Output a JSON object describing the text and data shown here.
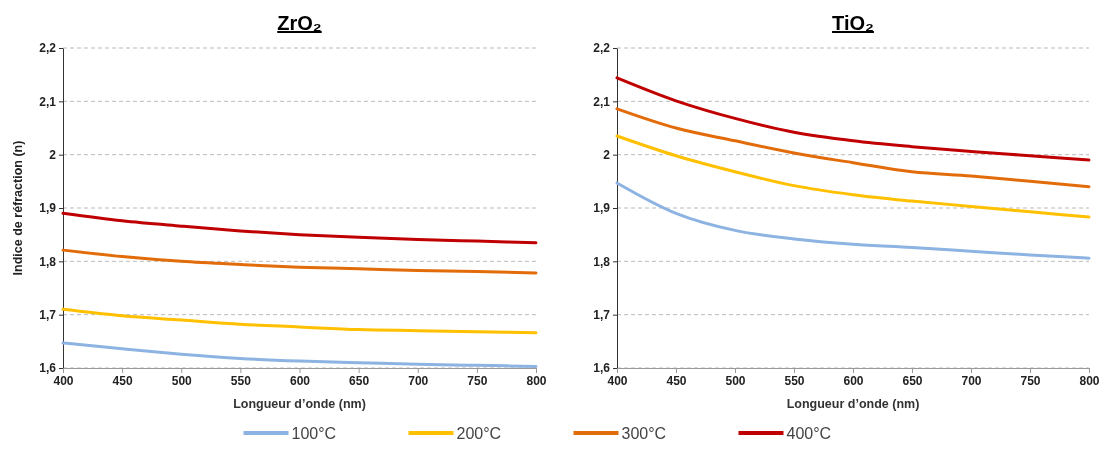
{
  "chart_data": [
    {
      "type": "line",
      "title": "ZrO₂",
      "xlabel": "Longueur d’onde (nm)",
      "ylabel": "Indice de réfraction (n)",
      "x": [
        400,
        450,
        500,
        550,
        600,
        650,
        700,
        750,
        800
      ],
      "xlim": [
        400,
        800
      ],
      "xticks": [
        400,
        450,
        500,
        550,
        600,
        650,
        700,
        750,
        800
      ],
      "ylim": [
        1.6,
        2.2
      ],
      "yticks": [
        {
          "value": 1.6,
          "label": "1,6"
        },
        {
          "value": 1.7,
          "label": "1,7"
        },
        {
          "value": 1.8,
          "label": "1,8"
        },
        {
          "value": 1.9,
          "label": "1,9"
        },
        2,
        {
          "value": 2.1,
          "label": "2,1"
        },
        {
          "value": 2.2,
          "label": "2,2"
        }
      ],
      "grid": "y",
      "legend": "bottom",
      "line_style": "solid",
      "marker": "none",
      "series": [
        {
          "name": "100°C",
          "color": "#8db3e2",
          "values": [
            1.647,
            1.636,
            1.626,
            1.618,
            1.613,
            1.61,
            1.607,
            1.605,
            1.603
          ]
        },
        {
          "name": "200°C",
          "color": "#ffc000",
          "values": [
            1.71,
            1.698,
            1.69,
            1.682,
            1.677,
            1.672,
            1.67,
            1.668,
            1.666
          ]
        },
        {
          "name": "300°C",
          "color": "#e36c0a",
          "values": [
            1.821,
            1.809,
            1.8,
            1.794,
            1.789,
            1.786,
            1.783,
            1.781,
            1.778
          ]
        },
        {
          "name": "400°C",
          "color": "#c00000",
          "values": [
            1.89,
            1.876,
            1.866,
            1.857,
            1.85,
            1.845,
            1.841,
            1.838,
            1.835
          ]
        }
      ]
    },
    {
      "type": "line",
      "title": "TiO₂",
      "xlabel": "Longueur d’onde (nm)",
      "x": [
        400,
        450,
        500,
        550,
        600,
        650,
        700,
        750,
        800
      ],
      "xlim": [
        400,
        800
      ],
      "xticks": [
        400,
        450,
        500,
        550,
        600,
        650,
        700,
        750,
        800
      ],
      "ylim": [
        1.6,
        2.2
      ],
      "yticks": [
        {
          "value": 1.6,
          "label": "1,6"
        },
        {
          "value": 1.7,
          "label": "1,7"
        },
        {
          "value": 1.8,
          "label": "1,8"
        },
        {
          "value": 1.9,
          "label": "1,9"
        },
        2,
        {
          "value": 2.1,
          "label": "2,1"
        },
        {
          "value": 2.2,
          "label": "2,2"
        }
      ],
      "grid": "y",
      "line_style": "solid",
      "marker": "none",
      "series": [
        {
          "color": "#8db3e2",
          "values": [
            1.947,
            1.89,
            1.858,
            1.842,
            1.832,
            1.826,
            1.819,
            1.812,
            1.806
          ]
        },
        {
          "color": "#ffc000",
          "values": [
            2.035,
            1.998,
            1.968,
            1.942,
            1.925,
            1.913,
            1.903,
            1.893,
            1.883
          ]
        },
        {
          "color": "#e36c0a",
          "values": [
            2.086,
            2.05,
            2.026,
            2.003,
            1.985,
            1.968,
            1.96,
            1.95,
            1.94
          ]
        },
        {
          "color": "#c00000",
          "values": [
            2.144,
            2.101,
            2.068,
            2.042,
            2.026,
            2.015,
            2.006,
            1.998,
            1.99
          ]
        }
      ]
    }
  ]
}
